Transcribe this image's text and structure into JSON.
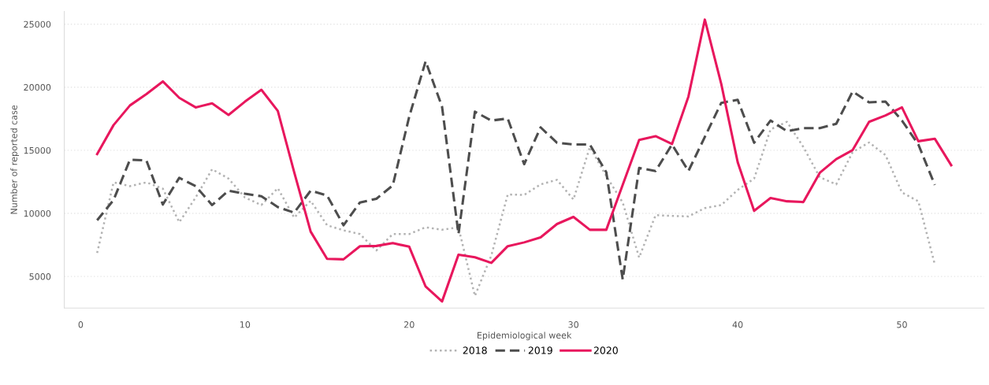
{
  "chart_data": {
    "type": "line",
    "xlabel": "Epidemiological week",
    "ylabel": "Number of reported case",
    "x": [
      1,
      2,
      3,
      4,
      5,
      6,
      7,
      8,
      9,
      10,
      11,
      12,
      13,
      14,
      15,
      16,
      17,
      18,
      19,
      20,
      21,
      22,
      23,
      24,
      25,
      26,
      27,
      28,
      29,
      30,
      31,
      32,
      33,
      34,
      35,
      36,
      37,
      38,
      39,
      40,
      41,
      42,
      43,
      44,
      45,
      46,
      47,
      48,
      49,
      50,
      51,
      52,
      53
    ],
    "xlim": [
      -1,
      55
    ],
    "xticks": [
      0,
      10,
      20,
      30,
      40,
      50
    ],
    "ylim": [
      2500,
      26000
    ],
    "yticks": [
      5000,
      10000,
      15000,
      20000,
      25000
    ],
    "grid": "y",
    "legend": "bottom",
    "series": [
      {
        "name": "2018",
        "color": "#b3b3b3",
        "line_style": "dotted",
        "values": [
          6860,
          12460,
          12160,
          12460,
          11960,
          9300,
          11260,
          13500,
          12760,
          11260,
          10660,
          12000,
          9660,
          11000,
          9060,
          8660,
          8360,
          7060,
          8360,
          8360,
          8900,
          8700,
          8900,
          3460,
          6660,
          11500,
          11460,
          12300,
          12660,
          11100,
          15260,
          12960,
          10860,
          6500,
          9860,
          9800,
          9760,
          10420,
          10660,
          11860,
          12760,
          16660,
          17260,
          15260,
          12860,
          12300,
          14860,
          15620,
          14620,
          11660,
          10960,
          5960,
          null
        ]
      },
      {
        "name": "2019",
        "color": "#4d4d4d",
        "line_style": "dashed",
        "values": [
          9460,
          11060,
          14260,
          14200,
          10700,
          12820,
          12160,
          10660,
          11800,
          11560,
          11360,
          10500,
          10060,
          11800,
          11420,
          9060,
          10860,
          11160,
          12220,
          17660,
          22060,
          18460,
          8360,
          18060,
          17360,
          17520,
          13900,
          16820,
          15600,
          15460,
          15460,
          13260,
          4760,
          13600,
          13360,
          15460,
          13360,
          16060,
          18760,
          19000,
          15600,
          17360,
          16520,
          16760,
          16760,
          17100,
          19660,
          18800,
          18860,
          17360,
          15460,
          12260,
          null
        ]
      },
      {
        "name": "2020",
        "color": "#e8175d",
        "line_style": "solid",
        "values": [
          14700,
          17000,
          18560,
          19460,
          20460,
          19160,
          18400,
          18720,
          17800,
          18860,
          19800,
          18120,
          13260,
          8560,
          6400,
          6360,
          7400,
          7420,
          7640,
          7360,
          4200,
          3020,
          6720,
          6520,
          6080,
          7400,
          7700,
          8100,
          9160,
          9720,
          8700,
          8700,
          12260,
          15820,
          16120,
          15500,
          19260,
          25360,
          20260,
          14060,
          10200,
          11220,
          10960,
          10900,
          13220,
          14300,
          15020,
          17260,
          17760,
          18400,
          15720,
          15920,
          13820
        ]
      }
    ]
  }
}
